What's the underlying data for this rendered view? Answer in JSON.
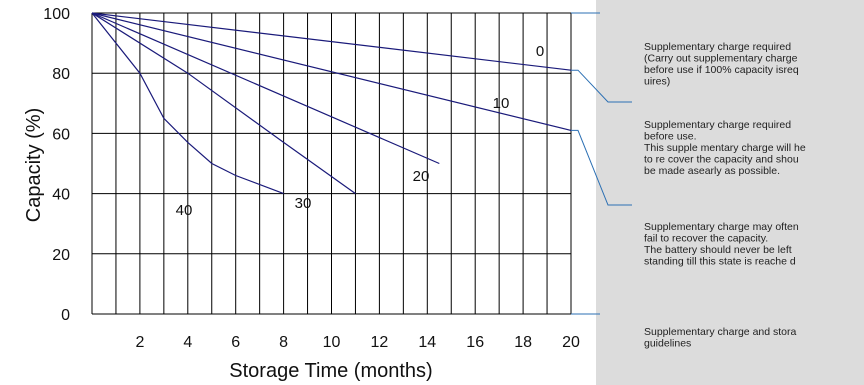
{
  "chart_data": {
    "type": "line",
    "xlabel": "Storage Time (months)",
    "ylabel": "Capacity  (%)",
    "xlim": [
      0,
      20
    ],
    "ylim": [
      0,
      100
    ],
    "x_ticks": [
      "2",
      "4",
      "6",
      "8",
      "10",
      "12",
      "14",
      "16",
      "18",
      "20"
    ],
    "y_ticks": [
      "0",
      "20",
      "40",
      "60",
      "80",
      "100"
    ],
    "grid": "on",
    "colors": {
      "series": "#1a1a7a",
      "grid": "#000000",
      "panel": "#dcdcdc",
      "connector": "#2b6fb3"
    },
    "series": [
      {
        "name": "0",
        "points": [
          [
            0,
            100
          ],
          [
            20,
            81
          ]
        ]
      },
      {
        "name": "10",
        "points": [
          [
            0,
            100
          ],
          [
            20,
            61
          ]
        ]
      },
      {
        "name": "20",
        "points": [
          [
            0,
            100
          ],
          [
            14.5,
            50
          ]
        ]
      },
      {
        "name": "30",
        "points": [
          [
            0,
            100
          ],
          [
            4,
            80
          ],
          [
            8,
            57
          ],
          [
            11,
            40
          ]
        ]
      },
      {
        "name": "40",
        "points": [
          [
            0,
            100
          ],
          [
            2,
            80
          ],
          [
            3,
            65
          ],
          [
            4,
            57
          ],
          [
            5,
            50
          ],
          [
            6,
            46
          ],
          [
            8,
            40
          ]
        ]
      }
    ],
    "annotations": [
      {
        "y_range": [
          81,
          100
        ],
        "lines": [
          "Supplementary charge required",
          "(Carry out supplementary charge",
          "before use if 100% capacity isreq",
          "uires)"
        ]
      },
      {
        "y_range": [
          61,
          81
        ],
        "lines": [
          "Supplementary charge required",
          "before use.",
          "This supple mentary charge will he",
          "to re cover the capacity and shou",
          "be made    asearly as possible."
        ]
      },
      {
        "y_range": [
          0,
          61
        ],
        "lines": [
          "Supplementary charge may often",
          "fail to recover the capacity.",
          "The battery should never be left",
          "standing till this state is reache d"
        ]
      },
      {
        "y_range": [
          null,
          0
        ],
        "lines": [
          "Supplementary charge and stora",
          "guidelines"
        ]
      }
    ]
  }
}
